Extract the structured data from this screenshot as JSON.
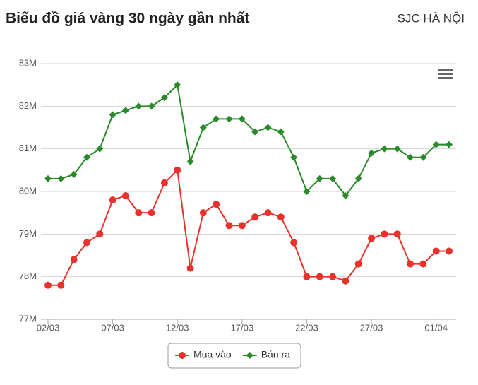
{
  "chart_data": {
    "type": "line",
    "title": "Biểu đồ giá vàng 30 ngày gần nhất",
    "subtitle": "SJC HÀ NỘI",
    "categories": [
      "02/03",
      null,
      null,
      null,
      null,
      "07/03",
      null,
      null,
      null,
      null,
      "12/03",
      null,
      null,
      null,
      null,
      "17/03",
      null,
      null,
      null,
      null,
      "22/03",
      null,
      null,
      null,
      null,
      "27/03",
      null,
      null,
      null,
      null,
      "01/04",
      null
    ],
    "series": [
      {
        "name": "Mua vào",
        "color": "#e8322b",
        "marker": "circle",
        "values": [
          77.8,
          77.8,
          78.4,
          78.8,
          79.0,
          79.8,
          79.9,
          79.5,
          79.5,
          80.2,
          80.5,
          78.2,
          79.5,
          79.7,
          79.2,
          79.2,
          79.4,
          79.5,
          79.4,
          78.8,
          78.0,
          78.0,
          78.0,
          77.9,
          78.3,
          78.9,
          79.0,
          79.0,
          78.3,
          78.3,
          78.6,
          78.6
        ]
      },
      {
        "name": "Bán ra",
        "color": "#2a8a2a",
        "marker": "diamond",
        "values": [
          80.3,
          80.3,
          80.4,
          80.8,
          81.0,
          81.8,
          81.9,
          82.0,
          82.0,
          82.2,
          82.5,
          80.7,
          81.5,
          81.7,
          81.7,
          81.7,
          81.4,
          81.5,
          81.4,
          80.8,
          80.0,
          80.3,
          80.3,
          79.9,
          80.3,
          80.9,
          81.0,
          81.0,
          80.8,
          80.8,
          81.1,
          81.1
        ]
      }
    ],
    "ylim": [
      77,
      83
    ],
    "yticks": [
      {
        "value": 77,
        "label": "77M"
      },
      {
        "value": 78,
        "label": "78M"
      },
      {
        "value": 79,
        "label": "79M"
      },
      {
        "value": 80,
        "label": "80M"
      },
      {
        "value": 81,
        "label": "81M"
      },
      {
        "value": 82,
        "label": "82M"
      },
      {
        "value": 83,
        "label": "83M"
      }
    ],
    "grid": true,
    "legend": "bottom"
  }
}
